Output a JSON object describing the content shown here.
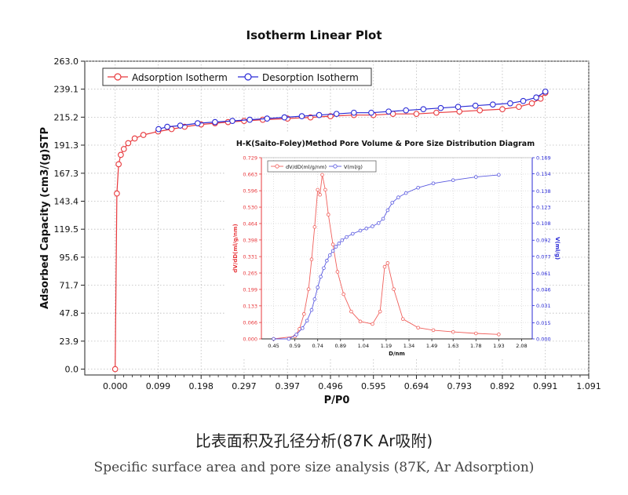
{
  "caption_cn": "比表面积及孔径分析(87K Ar吸附)",
  "caption_en": "Specific surface area and pore size analysis (87K, Ar Adsorption)",
  "colors": {
    "adsorption": "#e8393d",
    "desorption": "#2a2ad6",
    "inset_ads": "#f0605c",
    "inset_des": "#5a5ae0"
  },
  "chart_data": [
    {
      "type": "line",
      "title": "Isotherm Linear Plot",
      "xlabel": "P/P0",
      "ylabel": "Adsorbed Capacity (cm3/(g)STP",
      "xlim": [
        -0.07,
        1.091
      ],
      "ylim": [
        -5,
        263
      ],
      "xticks": [
        "0.000",
        "0.099",
        "0.198",
        "0.297",
        "0.397",
        "0.496",
        "0.595",
        "0.694",
        "0.793",
        "0.892",
        "0.991",
        "1.091"
      ],
      "xtick_values": [
        0,
        0.099,
        0.198,
        0.297,
        0.397,
        0.496,
        0.595,
        0.694,
        0.793,
        0.892,
        0.991,
        1.091
      ],
      "yticks": [
        "0.0",
        "23.9",
        "47.8",
        "71.7",
        "95.6",
        "119.5",
        "143.4",
        "167.3",
        "191.3",
        "215.2",
        "239.1",
        "263.0"
      ],
      "ytick_values": [
        0,
        23.9,
        47.8,
        71.7,
        95.6,
        119.5,
        143.4,
        167.3,
        191.3,
        215.2,
        239.1,
        263.0
      ],
      "legend": "top-left",
      "series": [
        {
          "name": "Adsorption Isotherm",
          "x": [
            0.0,
            0.004,
            0.008,
            0.013,
            0.02,
            0.03,
            0.045,
            0.065,
            0.099,
            0.13,
            0.16,
            0.198,
            0.23,
            0.26,
            0.297,
            0.34,
            0.397,
            0.45,
            0.496,
            0.55,
            0.595,
            0.64,
            0.694,
            0.74,
            0.793,
            0.84,
            0.892,
            0.93,
            0.96,
            0.98,
            0.991
          ],
          "y": [
            0.0,
            150,
            175,
            183,
            188,
            193,
            197,
            200,
            203,
            205,
            207,
            209,
            210,
            211,
            212,
            213,
            214,
            215,
            216,
            217,
            217,
            218,
            218,
            219,
            220,
            221,
            222,
            224,
            227,
            231,
            236
          ]
        },
        {
          "name": "Desorption Isotherm",
          "x": [
            0.991,
            0.97,
            0.94,
            0.91,
            0.87,
            0.83,
            0.79,
            0.75,
            0.71,
            0.67,
            0.63,
            0.59,
            0.55,
            0.51,
            0.47,
            0.43,
            0.39,
            0.35,
            0.31,
            0.27,
            0.23,
            0.19,
            0.15,
            0.12,
            0.1
          ],
          "y": [
            237,
            232,
            229,
            227,
            226,
            225,
            224,
            223,
            222,
            221,
            220,
            219,
            219,
            218,
            217,
            216,
            215,
            214,
            213,
            212,
            211,
            210,
            208,
            207,
            205
          ]
        }
      ]
    },
    {
      "type": "line",
      "title": "H-K(Saito-Foley)Method Pore Volume & Pore Size Distribution Diagram",
      "xlabel": "D/nm",
      "ylabel": "dV/dD(ml/g/nm)",
      "y2label": "V(ml/g)",
      "xlim": [
        0.37,
        2.15
      ],
      "ylim": [
        0,
        0.729
      ],
      "y2lim": [
        0,
        0.169
      ],
      "xticks": [
        "0.45",
        "0.59",
        "0.74",
        "0.89",
        "1.04",
        "1.19",
        "1.34",
        "1.49",
        "1.63",
        "1.78",
        "1.93",
        "2.08"
      ],
      "xtick_values": [
        0.45,
        0.59,
        0.74,
        0.89,
        1.04,
        1.19,
        1.34,
        1.49,
        1.63,
        1.78,
        1.93,
        2.08
      ],
      "yticks": [
        "0.000",
        "0.066",
        "0.133",
        "0.199",
        "0.265",
        "0.331",
        "0.398",
        "0.464",
        "0.530",
        "0.596",
        "0.663",
        "0.729"
      ],
      "ytick_values": [
        0,
        0.066,
        0.133,
        0.199,
        0.265,
        0.331,
        0.398,
        0.464,
        0.53,
        0.596,
        0.663,
        0.729
      ],
      "y2ticks": [
        "0.000",
        "0.015",
        "0.031",
        "0.046",
        "0.061",
        "0.077",
        "0.092",
        "0.108",
        "0.123",
        "0.138",
        "0.154",
        "0.169"
      ],
      "y2tick_values": [
        0,
        0.015,
        0.031,
        0.046,
        0.061,
        0.077,
        0.092,
        0.108,
        0.123,
        0.138,
        0.154,
        0.169
      ],
      "legend": "top-left",
      "series": [
        {
          "name": "dV/dD(ml/g/nm)",
          "axis": "left",
          "x": [
            0.45,
            0.59,
            0.62,
            0.65,
            0.68,
            0.7,
            0.72,
            0.74,
            0.755,
            0.77,
            0.79,
            0.81,
            0.84,
            0.87,
            0.91,
            0.96,
            1.02,
            1.1,
            1.15,
            1.18,
            1.2,
            1.24,
            1.3,
            1.4,
            1.5,
            1.63,
            1.78,
            1.93
          ],
          "y": [
            0.0,
            0.01,
            0.04,
            0.1,
            0.2,
            0.32,
            0.45,
            0.6,
            0.58,
            0.66,
            0.6,
            0.5,
            0.38,
            0.27,
            0.18,
            0.11,
            0.07,
            0.06,
            0.11,
            0.29,
            0.305,
            0.2,
            0.08,
            0.045,
            0.035,
            0.028,
            0.022,
            0.018
          ]
        },
        {
          "name": "V(ml/g)",
          "axis": "right",
          "x": [
            0.45,
            0.55,
            0.6,
            0.64,
            0.67,
            0.7,
            0.72,
            0.74,
            0.76,
            0.78,
            0.8,
            0.82,
            0.84,
            0.86,
            0.88,
            0.9,
            0.93,
            0.97,
            1.02,
            1.06,
            1.1,
            1.14,
            1.17,
            1.2,
            1.23,
            1.27,
            1.32,
            1.4,
            1.5,
            1.63,
            1.78,
            1.93
          ],
          "y": [
            0.0,
            0.0,
            0.004,
            0.01,
            0.017,
            0.027,
            0.037,
            0.048,
            0.058,
            0.066,
            0.073,
            0.078,
            0.082,
            0.086,
            0.089,
            0.092,
            0.095,
            0.098,
            0.101,
            0.103,
            0.105,
            0.108,
            0.112,
            0.12,
            0.127,
            0.132,
            0.136,
            0.141,
            0.145,
            0.148,
            0.151,
            0.153
          ]
        }
      ]
    }
  ]
}
